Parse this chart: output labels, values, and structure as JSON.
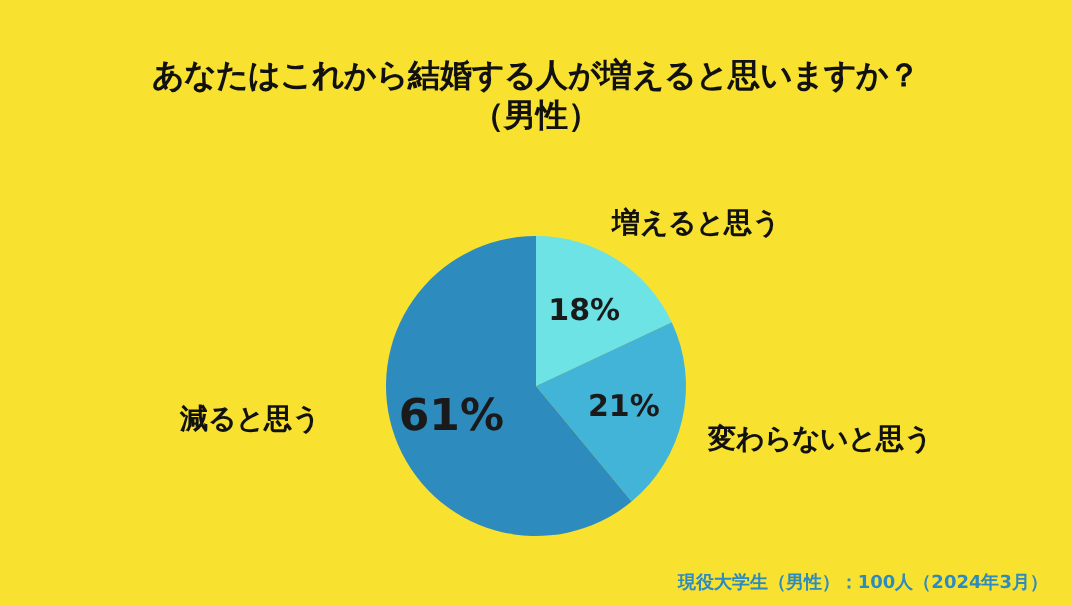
{
  "chart_data": {
    "type": "pie",
    "title": "あなたはこれから結婚する人が増えると思いますか？",
    "subtitle": "（男性）",
    "categories": [
      "増えると思う",
      "変わらないと思う",
      "減ると思う"
    ],
    "values": [
      18,
      21,
      61
    ],
    "value_labels": [
      "18%",
      "21%",
      "61%"
    ],
    "colors": [
      "#6de3e6",
      "#41b4d7",
      "#2e8bbe"
    ],
    "annotations": [
      "現役大学生（男性）：100人（2024年3月）"
    ]
  }
}
